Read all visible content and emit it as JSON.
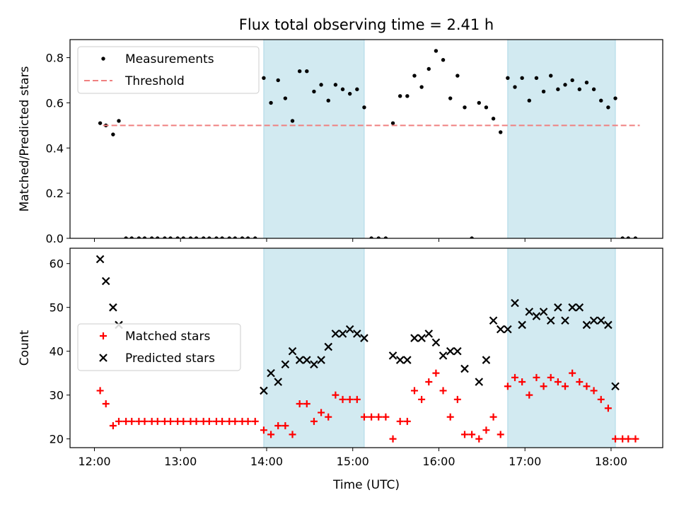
{
  "figure_title": "Flux total observing time = 2.41 h",
  "chart_data": [
    {
      "type": "scatter",
      "panel": "top",
      "title": "Flux total observing time = 2.41 h",
      "xlabel": "",
      "ylabel": "Matched/Predicted stars",
      "xticks": [
        "12:00",
        "13:00",
        "14:00",
        "15:00",
        "16:00",
        "17:00",
        "18:00"
      ],
      "show_x_tick_labels": false,
      "yticks": [
        "0.0",
        "0.2",
        "0.4",
        "0.6",
        "0.8"
      ],
      "xlim": [
        "11:43",
        "18:36"
      ],
      "ylim": [
        0,
        0.88
      ],
      "legend": "top-left",
      "shaded_intervals": [
        [
          "13:58",
          "15:08"
        ],
        [
          "16:48",
          "18:03"
        ]
      ],
      "shade_color": "#add8e6",
      "series": [
        {
          "name": "Measurements",
          "marker": "dot",
          "color": "#000000",
          "points": [
            [
              "12:04",
              0.51
            ],
            [
              "12:08",
              0.5
            ],
            [
              "12:13",
              0.46
            ],
            [
              "12:17",
              0.52
            ],
            [
              "12:22",
              0.0
            ],
            [
              "12:26",
              0.0
            ],
            [
              "12:31",
              0.0
            ],
            [
              "12:35",
              0.0
            ],
            [
              "12:40",
              0.0
            ],
            [
              "12:44",
              0.0
            ],
            [
              "12:49",
              0.0
            ],
            [
              "12:53",
              0.0
            ],
            [
              "12:58",
              0.0
            ],
            [
              "13:02",
              0.0
            ],
            [
              "13:07",
              0.0
            ],
            [
              "13:11",
              0.0
            ],
            [
              "13:16",
              0.0
            ],
            [
              "13:20",
              0.0
            ],
            [
              "13:25",
              0.0
            ],
            [
              "13:29",
              0.0
            ],
            [
              "13:34",
              0.0
            ],
            [
              "13:38",
              0.0
            ],
            [
              "13:43",
              0.0
            ],
            [
              "13:47",
              0.0
            ],
            [
              "13:52",
              0.0
            ],
            [
              "13:58",
              0.71
            ],
            [
              "14:03",
              0.6
            ],
            [
              "14:08",
              0.7
            ],
            [
              "14:13",
              0.62
            ],
            [
              "14:18",
              0.52
            ],
            [
              "14:23",
              0.74
            ],
            [
              "14:28",
              0.74
            ],
            [
              "14:33",
              0.65
            ],
            [
              "14:38",
              0.68
            ],
            [
              "14:43",
              0.61
            ],
            [
              "14:48",
              0.68
            ],
            [
              "14:53",
              0.66
            ],
            [
              "14:58",
              0.64
            ],
            [
              "15:03",
              0.66
            ],
            [
              "15:08",
              0.58
            ],
            [
              "15:13",
              0.0
            ],
            [
              "15:18",
              0.0
            ],
            [
              "15:23",
              0.0
            ],
            [
              "15:28",
              0.51
            ],
            [
              "15:33",
              0.63
            ],
            [
              "15:38",
              0.63
            ],
            [
              "15:43",
              0.72
            ],
            [
              "15:48",
              0.67
            ],
            [
              "15:53",
              0.75
            ],
            [
              "15:58",
              0.83
            ],
            [
              "16:03",
              0.79
            ],
            [
              "16:08",
              0.62
            ],
            [
              "16:13",
              0.72
            ],
            [
              "16:18",
              0.58
            ],
            [
              "16:23",
              0.0
            ],
            [
              "16:28",
              0.6
            ],
            [
              "16:33",
              0.58
            ],
            [
              "16:38",
              0.53
            ],
            [
              "16:43",
              0.47
            ],
            [
              "16:48",
              0.71
            ],
            [
              "16:53",
              0.67
            ],
            [
              "16:58",
              0.71
            ],
            [
              "17:03",
              0.61
            ],
            [
              "17:08",
              0.71
            ],
            [
              "17:13",
              0.65
            ],
            [
              "17:18",
              0.72
            ],
            [
              "17:23",
              0.66
            ],
            [
              "17:28",
              0.68
            ],
            [
              "17:33",
              0.7
            ],
            [
              "17:38",
              0.66
            ],
            [
              "17:43",
              0.69
            ],
            [
              "17:48",
              0.66
            ],
            [
              "17:53",
              0.61
            ],
            [
              "17:58",
              0.58
            ],
            [
              "18:03",
              0.62
            ],
            [
              "18:08",
              0.0
            ],
            [
              "18:12",
              0.0
            ],
            [
              "18:17",
              0.0
            ]
          ]
        },
        {
          "name": "Threshold",
          "type": "line",
          "style": "dashed",
          "color": "#f08080",
          "points": [
            [
              "12:06",
              0.5
            ],
            [
              "18:20",
              0.5
            ]
          ]
        }
      ]
    },
    {
      "type": "scatter",
      "panel": "bottom",
      "title": "",
      "xlabel": "Time (UTC)",
      "ylabel": "Count",
      "xticks": [
        "12:00",
        "13:00",
        "14:00",
        "15:00",
        "16:00",
        "17:00",
        "18:00"
      ],
      "show_x_tick_labels": true,
      "yticks": [
        "20",
        "30",
        "40",
        "50",
        "60"
      ],
      "xlim": [
        "11:43",
        "18:36"
      ],
      "ylim": [
        18,
        63.5
      ],
      "legend": "center-left",
      "shaded_intervals": [
        [
          "13:58",
          "15:08"
        ],
        [
          "16:48",
          "18:03"
        ]
      ],
      "shade_color": "#add8e6",
      "series": [
        {
          "name": "Matched stars",
          "marker": "plus",
          "color": "#ff0000",
          "points": [
            [
              "12:04",
              31
            ],
            [
              "12:08",
              28
            ],
            [
              "12:13",
              23
            ],
            [
              "12:17",
              24
            ],
            [
              "12:22",
              24
            ],
            [
              "12:26",
              24
            ],
            [
              "12:31",
              24
            ],
            [
              "12:35",
              24
            ],
            [
              "12:40",
              24
            ],
            [
              "12:44",
              24
            ],
            [
              "12:49",
              24
            ],
            [
              "12:53",
              24
            ],
            [
              "12:58",
              24
            ],
            [
              "13:02",
              24
            ],
            [
              "13:07",
              24
            ],
            [
              "13:11",
              24
            ],
            [
              "13:16",
              24
            ],
            [
              "13:20",
              24
            ],
            [
              "13:25",
              24
            ],
            [
              "13:29",
              24
            ],
            [
              "13:34",
              24
            ],
            [
              "13:38",
              24
            ],
            [
              "13:43",
              24
            ],
            [
              "13:47",
              24
            ],
            [
              "13:52",
              24
            ],
            [
              "13:58",
              22
            ],
            [
              "14:03",
              21
            ],
            [
              "14:08",
              23
            ],
            [
              "14:13",
              23
            ],
            [
              "14:18",
              21
            ],
            [
              "14:23",
              28
            ],
            [
              "14:28",
              28
            ],
            [
              "14:33",
              24
            ],
            [
              "14:38",
              26
            ],
            [
              "14:43",
              25
            ],
            [
              "14:48",
              30
            ],
            [
              "14:53",
              29
            ],
            [
              "14:58",
              29
            ],
            [
              "15:03",
              29
            ],
            [
              "15:08",
              25
            ],
            [
              "15:13",
              25
            ],
            [
              "15:18",
              25
            ],
            [
              "15:23",
              25
            ],
            [
              "15:28",
              20
            ],
            [
              "15:33",
              24
            ],
            [
              "15:38",
              24
            ],
            [
              "15:43",
              31
            ],
            [
              "15:48",
              29
            ],
            [
              "15:53",
              33
            ],
            [
              "15:58",
              35
            ],
            [
              "16:03",
              31
            ],
            [
              "16:08",
              25
            ],
            [
              "16:13",
              29
            ],
            [
              "16:18",
              21
            ],
            [
              "16:23",
              21
            ],
            [
              "16:28",
              20
            ],
            [
              "16:33",
              22
            ],
            [
              "16:38",
              25
            ],
            [
              "16:43",
              21
            ],
            [
              "16:48",
              32
            ],
            [
              "16:53",
              34
            ],
            [
              "16:58",
              33
            ],
            [
              "17:03",
              30
            ],
            [
              "17:08",
              34
            ],
            [
              "17:13",
              32
            ],
            [
              "17:18",
              34
            ],
            [
              "17:23",
              33
            ],
            [
              "17:28",
              32
            ],
            [
              "17:33",
              35
            ],
            [
              "17:38",
              33
            ],
            [
              "17:43",
              32
            ],
            [
              "17:48",
              31
            ],
            [
              "17:53",
              29
            ],
            [
              "17:58",
              27
            ],
            [
              "18:03",
              20
            ],
            [
              "18:08",
              20
            ],
            [
              "18:12",
              20
            ],
            [
              "18:17",
              20
            ]
          ]
        },
        {
          "name": "Predicted stars",
          "marker": "x",
          "color": "#000000",
          "points": [
            [
              "12:04",
              61
            ],
            [
              "12:08",
              56
            ],
            [
              "12:13",
              50
            ],
            [
              "12:17",
              46
            ],
            [
              "13:58",
              31
            ],
            [
              "14:03",
              35
            ],
            [
              "14:08",
              33
            ],
            [
              "14:13",
              37
            ],
            [
              "14:18",
              40
            ],
            [
              "14:23",
              38
            ],
            [
              "14:28",
              38
            ],
            [
              "14:33",
              37
            ],
            [
              "14:38",
              38
            ],
            [
              "14:43",
              41
            ],
            [
              "14:48",
              44
            ],
            [
              "14:53",
              44
            ],
            [
              "14:58",
              45
            ],
            [
              "15:03",
              44
            ],
            [
              "15:08",
              43
            ],
            [
              "15:28",
              39
            ],
            [
              "15:33",
              38
            ],
            [
              "15:38",
              38
            ],
            [
              "15:43",
              43
            ],
            [
              "15:48",
              43
            ],
            [
              "15:53",
              44
            ],
            [
              "15:58",
              42
            ],
            [
              "16:03",
              39
            ],
            [
              "16:08",
              40
            ],
            [
              "16:13",
              40
            ],
            [
              "16:18",
              36
            ],
            [
              "16:28",
              33
            ],
            [
              "16:33",
              38
            ],
            [
              "16:38",
              47
            ],
            [
              "16:43",
              45
            ],
            [
              "16:48",
              45
            ],
            [
              "16:53",
              51
            ],
            [
              "16:58",
              46
            ],
            [
              "17:03",
              49
            ],
            [
              "17:08",
              48
            ],
            [
              "17:13",
              49
            ],
            [
              "17:18",
              47
            ],
            [
              "17:23",
              50
            ],
            [
              "17:28",
              47
            ],
            [
              "17:33",
              50
            ],
            [
              "17:38",
              50
            ],
            [
              "17:43",
              46
            ],
            [
              "17:48",
              47
            ],
            [
              "17:53",
              47
            ],
            [
              "17:58",
              46
            ],
            [
              "18:03",
              32
            ]
          ]
        }
      ]
    }
  ]
}
